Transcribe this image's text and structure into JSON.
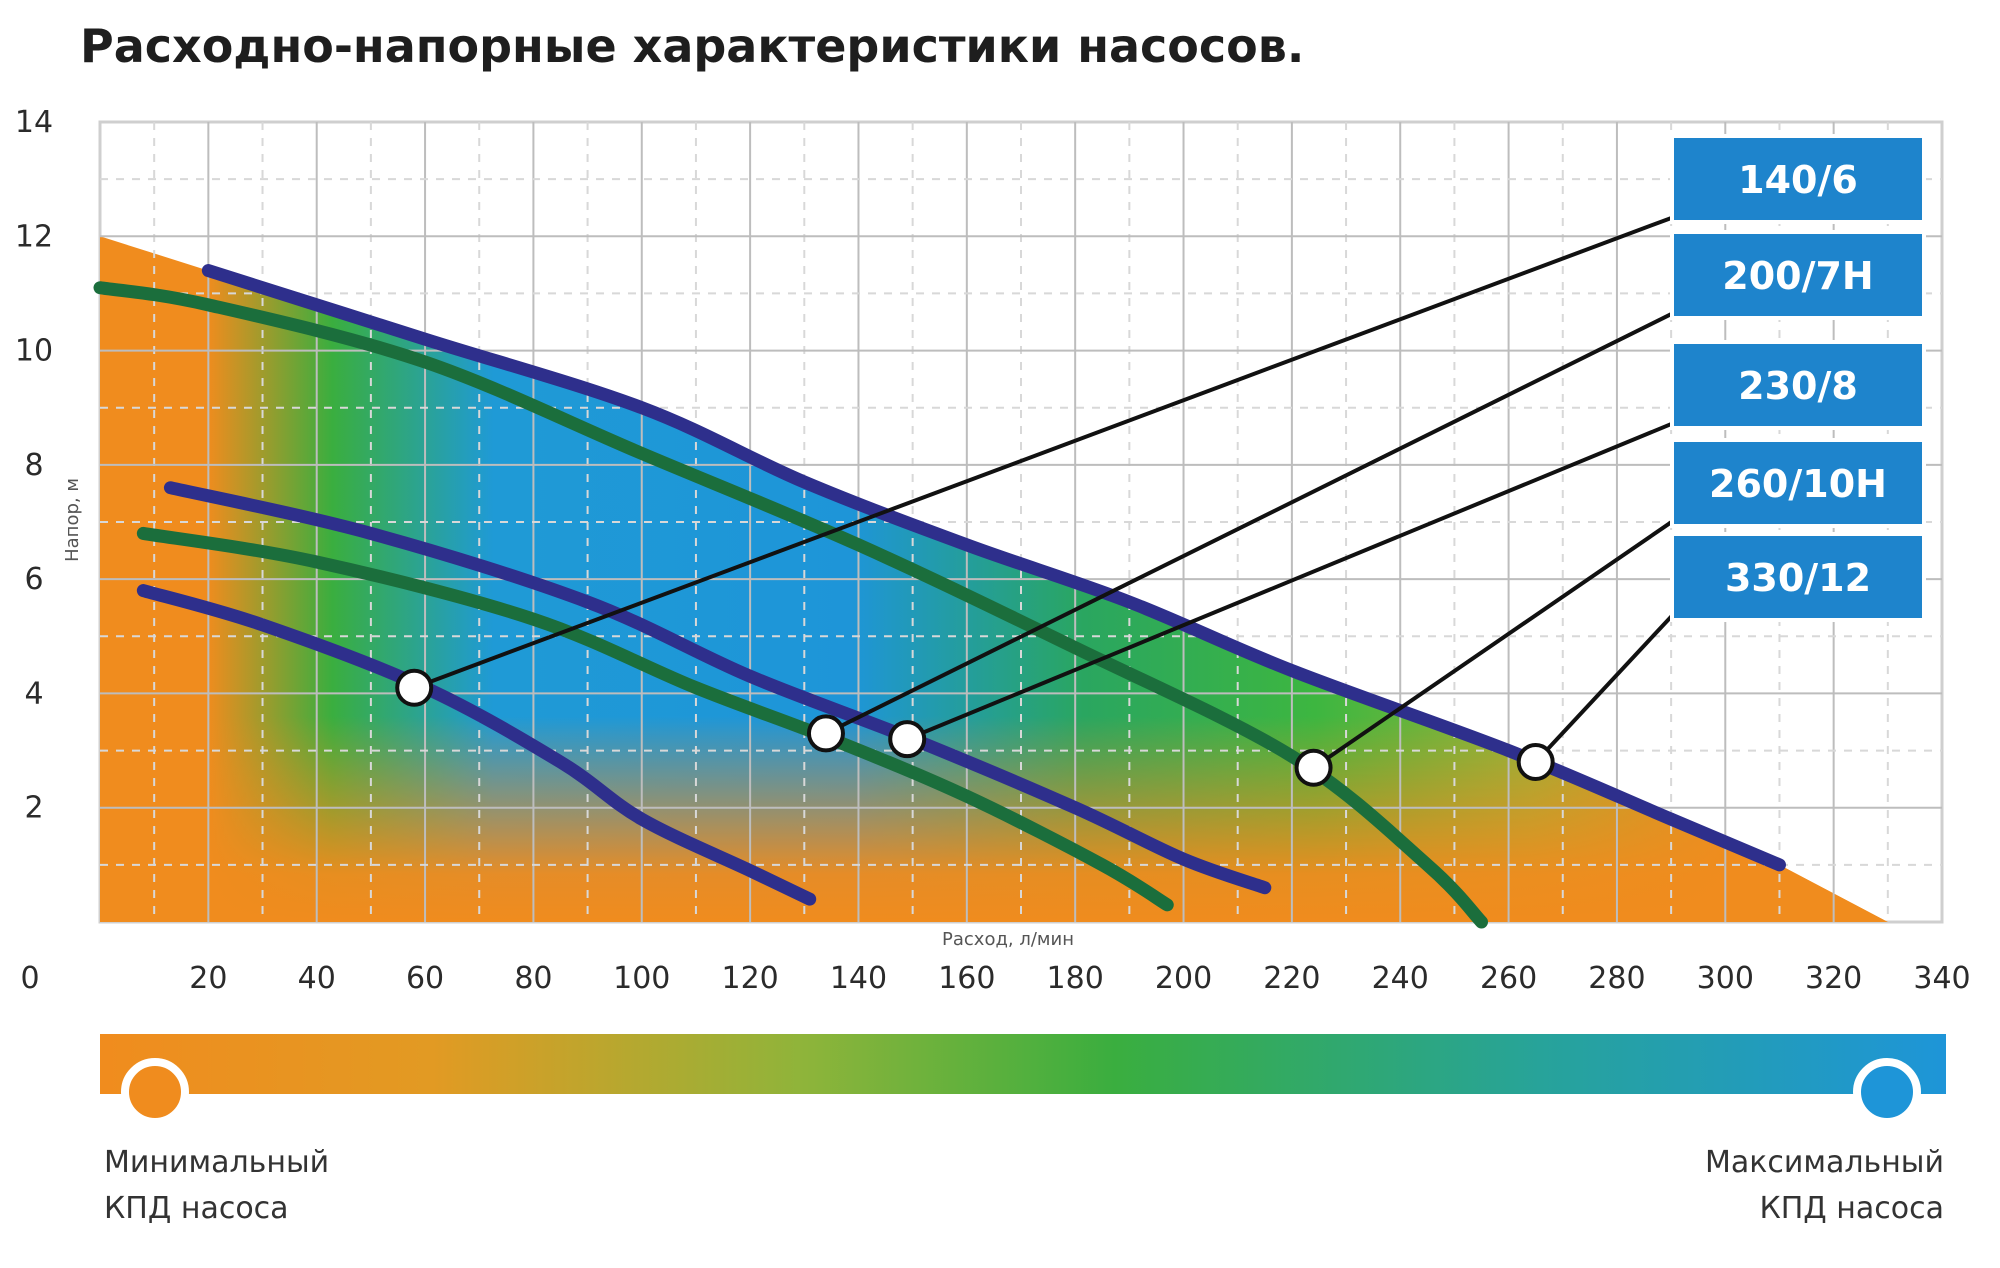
{
  "chart_data": {
    "type": "line",
    "title": "Расходно-напорные характеристики насосов.",
    "xlabel": "Расход, л/мин",
    "ylabel": "Напор, м",
    "xlim": [
      0,
      340
    ],
    "ylim": [
      0,
      14
    ],
    "x_ticks": [
      0,
      20,
      40,
      60,
      80,
      100,
      120,
      140,
      160,
      180,
      200,
      220,
      240,
      260,
      280,
      300,
      320,
      340
    ],
    "y_ticks": [
      2,
      4,
      6,
      8,
      10,
      12,
      14
    ],
    "grid": true,
    "efficiency_bar": {
      "min_label_line1": "Минимальный",
      "min_label_line2": "КПД насоса",
      "max_label_line1": "Максимальный",
      "max_label_line2": "КПД насоса"
    },
    "series": [
      {
        "name": "140/6",
        "color": "#2e2f8c",
        "points": [
          [
            8,
            5.8
          ],
          [
            30,
            5.2
          ],
          [
            60,
            4.1
          ],
          [
            85,
            2.8
          ],
          [
            100,
            1.8
          ],
          [
            120,
            0.9
          ],
          [
            131,
            0.4
          ]
        ],
        "marker": [
          58,
          4.1
        ]
      },
      {
        "name": "200/7H",
        "color": "#1b6e3c",
        "points": [
          [
            8,
            6.8
          ],
          [
            40,
            6.3
          ],
          [
            80,
            5.3
          ],
          [
            110,
            4.1
          ],
          [
            135,
            3.2
          ],
          [
            160,
            2.2
          ],
          [
            185,
            1.0
          ],
          [
            197,
            0.3
          ]
        ],
        "marker": [
          134,
          3.3
        ]
      },
      {
        "name": "230/8",
        "color": "#2e2f8c",
        "points": [
          [
            13,
            7.6
          ],
          [
            50,
            6.8
          ],
          [
            90,
            5.6
          ],
          [
            120,
            4.3
          ],
          [
            150,
            3.2
          ],
          [
            180,
            2.0
          ],
          [
            200,
            1.1
          ],
          [
            215,
            0.6
          ]
        ],
        "marker": [
          149,
          3.2
        ]
      },
      {
        "name": "260/10H",
        "color": "#1b6e3c",
        "points": [
          [
            0,
            11.1
          ],
          [
            20,
            10.8
          ],
          [
            60,
            9.8
          ],
          [
            100,
            8.2
          ],
          [
            140,
            6.6
          ],
          [
            180,
            4.8
          ],
          [
            220,
            2.9
          ],
          [
            245,
            1.0
          ],
          [
            255,
            0.0
          ]
        ],
        "marker": [
          224,
          2.7
        ]
      },
      {
        "name": "330/12",
        "color": "#2e2f8c",
        "points": [
          [
            20,
            11.4
          ],
          [
            60,
            10.2
          ],
          [
            100,
            9.0
          ],
          [
            130,
            7.7
          ],
          [
            160,
            6.6
          ],
          [
            190,
            5.6
          ],
          [
            220,
            4.4
          ],
          [
            260,
            3.0
          ],
          [
            290,
            1.8
          ],
          [
            310,
            1.0
          ]
        ],
        "marker": [
          265,
          2.8
        ]
      }
    ],
    "legend_placement": "right"
  }
}
